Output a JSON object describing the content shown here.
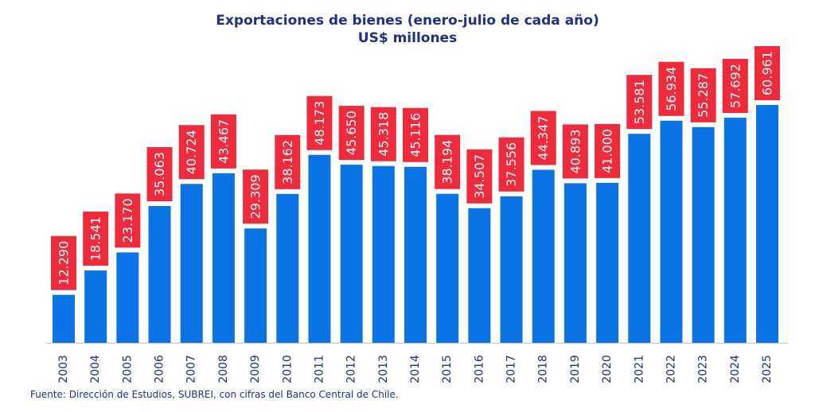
{
  "chart_data": {
    "type": "bar",
    "title": "Exportaciones de bienes (enero-julio de cada año)",
    "subtitle": "US$ millones",
    "categories": [
      "2003",
      "2004",
      "2005",
      "2006",
      "2007",
      "2008",
      "2009",
      "2010",
      "2011",
      "2012",
      "2013",
      "2014",
      "2015",
      "2016",
      "2017",
      "2018",
      "2019",
      "2020",
      "2021",
      "2022",
      "2023",
      "2024",
      "2025"
    ],
    "values": [
      12290,
      18541,
      23170,
      35063,
      40724,
      43467,
      29309,
      38162,
      48173,
      45650,
      45318,
      45116,
      38194,
      34507,
      37556,
      44347,
      40893,
      41000,
      53581,
      56934,
      55287,
      57692,
      60961
    ],
    "data_labels": [
      "12.290",
      "18.541",
      "23.170",
      "35.063",
      "40.724",
      "43.467",
      "29.309",
      "38.162",
      "48.173",
      "45.650",
      "45.318",
      "45.116",
      "38.194",
      "34.507",
      "37.556",
      "44.347",
      "40.893",
      "41.000",
      "53.581",
      "56.934",
      "55.287",
      "57.692",
      "60.961"
    ],
    "xlabel": "",
    "ylabel": "",
    "ylim": [
      0,
      61000
    ],
    "grid": false,
    "colors": {
      "bar": "#0a74e6",
      "label_box": "#ee2a3b",
      "label_text": "#ffffff",
      "axis_text": "#1f2f8a"
    }
  },
  "source": "Fuente: Dirección de Estudios, SUBREI, con cifras del Banco Central de Chile."
}
